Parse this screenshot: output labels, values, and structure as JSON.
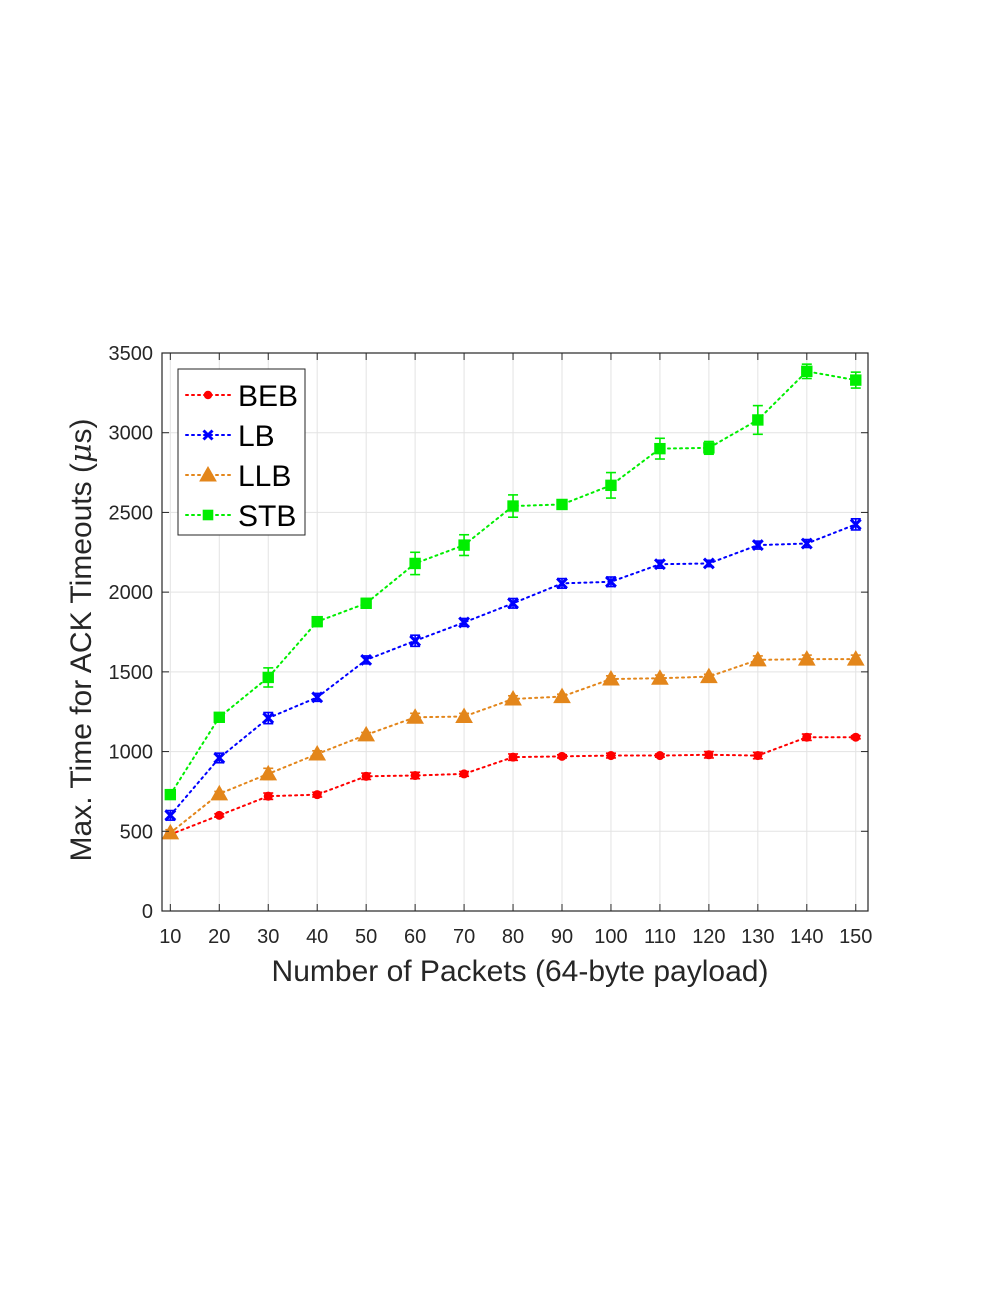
{
  "chart_data": {
    "type": "line",
    "title": "",
    "xlabel": "Number of Packets (64-byte payload)",
    "ylabel_prefix": "Max. Time for ACK Timeouts (",
    "ylabel_unit_mu": "μ",
    "ylabel_suffix": "s)",
    "x": [
      10,
      20,
      30,
      40,
      50,
      60,
      70,
      80,
      90,
      100,
      110,
      120,
      130,
      140,
      150
    ],
    "xticks": [
      "10",
      "20",
      "30",
      "40",
      "50",
      "60",
      "70",
      "80",
      "90",
      "100",
      "110",
      "120",
      "130",
      "140",
      "150"
    ],
    "yticks": [
      "0",
      "500",
      "1000",
      "1500",
      "2000",
      "2500",
      "3000",
      "3500"
    ],
    "ylim": [
      0,
      3500
    ],
    "grid": true,
    "legend_position": "top-left",
    "series": [
      {
        "name": "BEB",
        "color": "#ff0000",
        "marker": "circle",
        "values": [
          480,
          600,
          720,
          730,
          845,
          850,
          860,
          965,
          970,
          975,
          975,
          980,
          975,
          1090,
          1090
        ],
        "errors": [
          10,
          10,
          20,
          15,
          20,
          20,
          15,
          20,
          10,
          15,
          10,
          20,
          20,
          20,
          10
        ]
      },
      {
        "name": "LB",
        "color": "#0000ff",
        "marker": "x",
        "values": [
          600,
          960,
          1210,
          1340,
          1575,
          1695,
          1810,
          1930,
          2055,
          2065,
          2175,
          2180,
          2295,
          2305,
          2425
        ],
        "errors": [
          30,
          30,
          35,
          25,
          25,
          35,
          25,
          30,
          30,
          30,
          25,
          20,
          25,
          25,
          35
        ]
      },
      {
        "name": "LLB",
        "color": "#e3861b",
        "marker": "triangle",
        "values": [
          490,
          735,
          860,
          985,
          1105,
          1215,
          1220,
          1330,
          1345,
          1455,
          1460,
          1470,
          1575,
          1580,
          1580
        ],
        "errors": [
          20,
          15,
          35,
          20,
          15,
          25,
          20,
          20,
          15,
          20,
          20,
          15,
          25,
          25,
          25
        ]
      },
      {
        "name": "STB",
        "color": "#00ee00",
        "marker": "square",
        "values": [
          730,
          1215,
          1465,
          1815,
          1930,
          2180,
          2295,
          2540,
          2550,
          2670,
          2900,
          2905,
          3080,
          3385,
          3330
        ],
        "errors": [
          25,
          20,
          60,
          30,
          30,
          70,
          65,
          70,
          20,
          80,
          65,
          40,
          90,
          45,
          50
        ]
      }
    ]
  }
}
